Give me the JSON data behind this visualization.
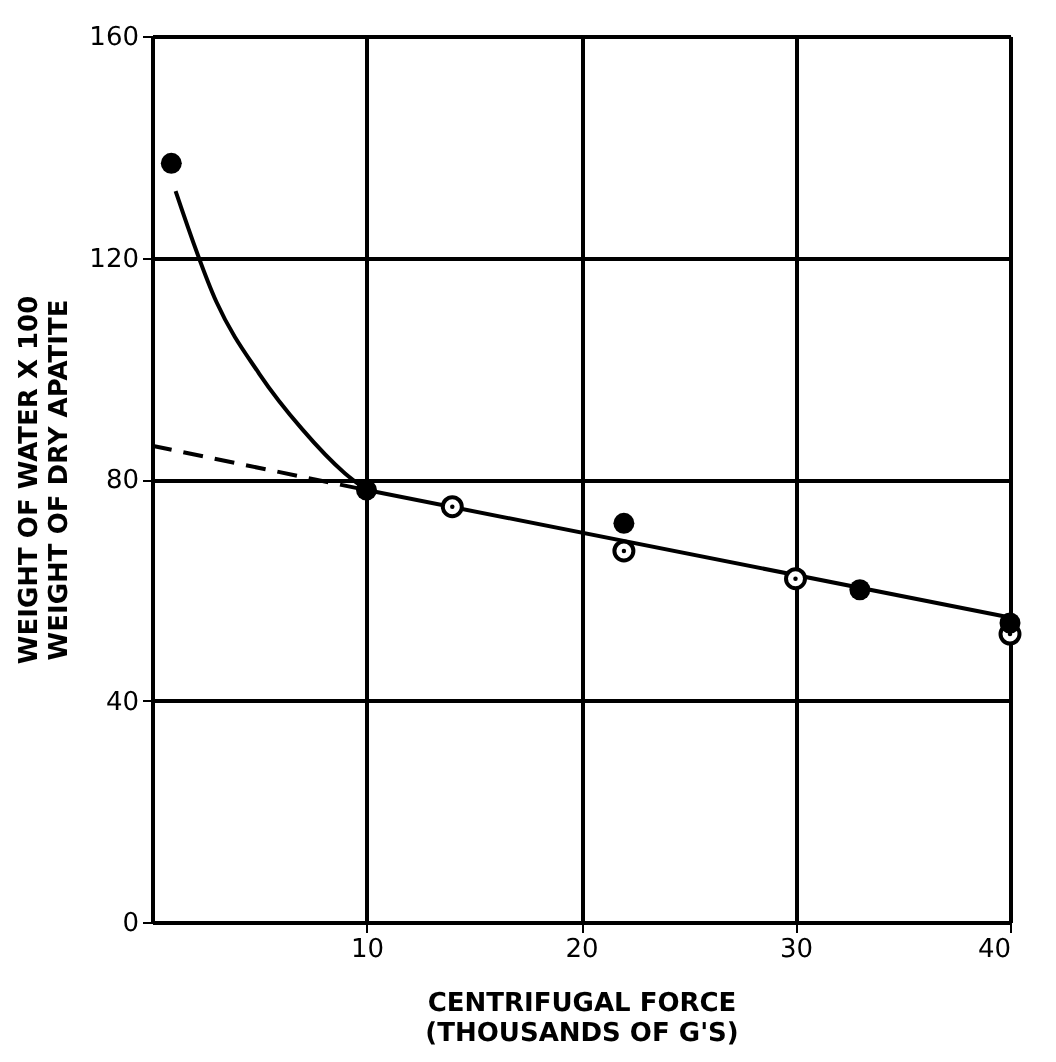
{
  "chart_data": {
    "type": "scatter",
    "xlabel": "CENTRIFUGAL FORCE\n(THOUSANDS OF G'S)",
    "ylabel": "WEIGHT OF WATER X 100\nWEIGHT OF DRY APATITE",
    "xlim": [
      0,
      40
    ],
    "xticks": [
      10,
      20,
      30,
      40
    ],
    "ylim": [
      0,
      160
    ],
    "yticks": [
      0,
      40,
      80,
      120,
      160
    ],
    "grid": true,
    "marker": "circle",
    "series": [
      {
        "color": "#000000",
        "x": [
          0.9,
          10,
          22,
          33,
          40
        ],
        "values": [
          137,
          78,
          72,
          60,
          54
        ]
      },
      {
        "color": "#000000",
        "x": [
          14,
          22,
          30,
          40
        ],
        "values": [
          75,
          67,
          62,
          52
        ]
      },
      {
        "type": "line",
        "marker": "none",
        "color": "#000000",
        "line_style": "solid",
        "x": [
          1.1,
          3,
          5,
          7,
          9,
          10
        ],
        "values": [
          132,
          112,
          99,
          89,
          81,
          78
        ]
      },
      {
        "type": "line",
        "marker": "none",
        "color": "#000000",
        "line_style": "dashed",
        "x": [
          0,
          10
        ],
        "values": [
          86,
          78
        ]
      },
      {
        "type": "line",
        "marker": "none",
        "color": "#000000",
        "line_style": "solid",
        "x": [
          10,
          40
        ],
        "values": [
          78,
          55
        ]
      }
    ]
  }
}
